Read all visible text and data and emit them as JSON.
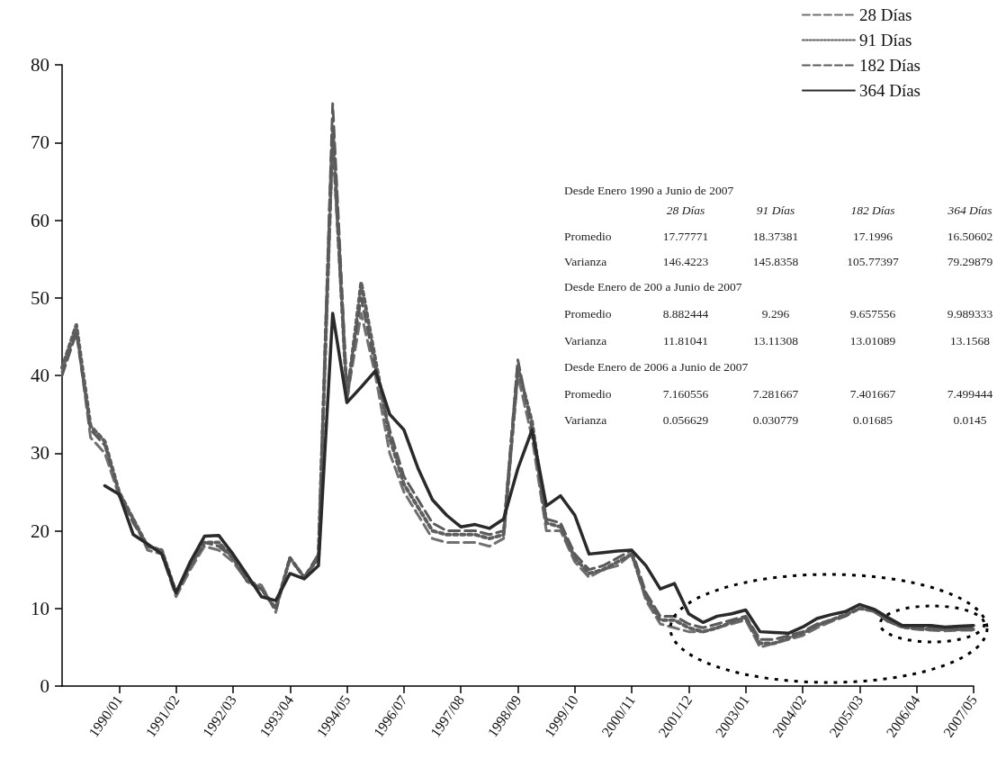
{
  "chart_data": {
    "type": "line",
    "categories": [
      null,
      null,
      null,
      null,
      "1990/01",
      null,
      null,
      null,
      "1991/02",
      null,
      null,
      null,
      "1992/03",
      null,
      null,
      null,
      "1993/04",
      null,
      null,
      null,
      "1994/05",
      null,
      null,
      null,
      "1996/07",
      null,
      null,
      null,
      "1997/08",
      null,
      null,
      null,
      "1998/09",
      null,
      null,
      null,
      "1999/10",
      null,
      null,
      null,
      "2000/11",
      null,
      null,
      null,
      "2001/12",
      null,
      null,
      null,
      "2003/01",
      null,
      null,
      null,
      "2004/02",
      null,
      null,
      null,
      "2005/03",
      null,
      null,
      null,
      "2006/04",
      null,
      null,
      null,
      "2007/05"
    ],
    "series": [
      {
        "name": "28 Días",
        "color": "#707070",
        "line_style": "dashed",
        "values": [
          40.5,
          46,
          32,
          30,
          24.5,
          21.5,
          17.5,
          17,
          11.5,
          15,
          18,
          17.5,
          16,
          13.5,
          13,
          9.5,
          16.5,
          14,
          16.5,
          70,
          37,
          48,
          40,
          30,
          25,
          22,
          19,
          18.5,
          18.5,
          18.5,
          18,
          19,
          40,
          32,
          20,
          20,
          16,
          14,
          15,
          15.5,
          17,
          11,
          8,
          7.5,
          7,
          7,
          7.5,
          8,
          8.5,
          5,
          5.5,
          6,
          6.5,
          7.5,
          8.3,
          9,
          10,
          9.6,
          8.3,
          7.6,
          7.3,
          7.2,
          7.1,
          7.2,
          7.2
        ]
      },
      {
        "name": "91 Días",
        "color": "#5e5e5e",
        "line_style": "dotted",
        "values": [
          41,
          46.5,
          33.5,
          31.5,
          25,
          21.5,
          18,
          17.5,
          12,
          15.5,
          18.5,
          18.5,
          16.5,
          13.5,
          12.5,
          10,
          16.5,
          14,
          16.5,
          72,
          37,
          52,
          42,
          32,
          26,
          23,
          20,
          19.5,
          19.5,
          19.5,
          19,
          19.5,
          41,
          34,
          21,
          20.5,
          16.5,
          14.5,
          15,
          16,
          17,
          11.5,
          8.5,
          8.5,
          7.5,
          7,
          7.5,
          8.2,
          8.8,
          5.5,
          5.5,
          6.2,
          6.8,
          7.8,
          8.5,
          9.2,
          10,
          9.7,
          8.4,
          7.6,
          7.4,
          7.3,
          7.3,
          7.3,
          7.3
        ]
      },
      {
        "name": "182 Días",
        "color": "#5a5a5a",
        "line_style": "dashed",
        "values": [
          40,
          45.5,
          33,
          31,
          25,
          21,
          18,
          17.5,
          12,
          15.5,
          18.5,
          18,
          16.5,
          13.8,
          12.5,
          10,
          16.5,
          14,
          17,
          75,
          38,
          50,
          41,
          33,
          27,
          24,
          21,
          20,
          20,
          20,
          19.5,
          20,
          42,
          33,
          21.5,
          21,
          17,
          15,
          15.5,
          16.5,
          17.5,
          12,
          9,
          9,
          8,
          7.5,
          8,
          8.5,
          9,
          6,
          6,
          6.5,
          7,
          8,
          8.5,
          9,
          10,
          9.8,
          8.5,
          7.7,
          7.5,
          7.5,
          7.4,
          7.4,
          7.5
        ]
      },
      {
        "name": "364 Días",
        "color": "#2a2a2a",
        "line_style": "solid",
        "values": [
          null,
          null,
          null,
          25.8,
          24.7,
          19.5,
          18.3,
          17,
          12,
          16,
          19.3,
          19.4,
          17,
          14.3,
          11.5,
          11,
          14.5,
          13.8,
          15.5,
          48,
          36.5,
          38.5,
          40.6,
          35,
          33,
          28,
          24,
          22,
          20.5,
          20.8,
          20.3,
          21.5,
          28,
          33,
          23.2,
          24.5,
          22,
          17,
          17.2,
          17.4,
          17.5,
          15.5,
          12.5,
          13.2,
          9.3,
          8.2,
          9,
          9.3,
          9.8,
          7,
          6.9,
          6.8,
          7.6,
          8.7,
          9.2,
          9.6,
          10.5,
          9.9,
          8.8,
          7.8,
          7.8,
          7.8,
          7.6,
          7.7,
          7.8
        ]
      }
    ],
    "ylim": [
      0,
      80
    ],
    "yticks": [
      0,
      10,
      20,
      30,
      40,
      50,
      60,
      70,
      80
    ],
    "grid": false,
    "legend": "top right",
    "marker": "none",
    "annotations": [
      "Desde Enero 1990 a Junio de 2007",
      "28 Días",
      "91 Días",
      "182 Días",
      "364 Días",
      "Promedio",
      "17.77771",
      "18.37381",
      "17.1996",
      "16.50602",
      "Varianza",
      "146.4223",
      "145.8358",
      "105.77397",
      "79.29879",
      "Desde Enero de 200 a Junio de 2007",
      "Promedio",
      "8.882444",
      "9.296",
      "9.657556",
      "9.989333",
      "Varianza",
      "11.81041",
      "13.11308",
      "13.01089",
      "13.1568",
      "Desde Enero de 2006 a Junio de 2007",
      "Promedio",
      "7.160556",
      "7.281667",
      "7.401667",
      "7.499444",
      "Varianza",
      "0.056629",
      "0.030779",
      "0.01685",
      "0.0145"
    ]
  }
}
